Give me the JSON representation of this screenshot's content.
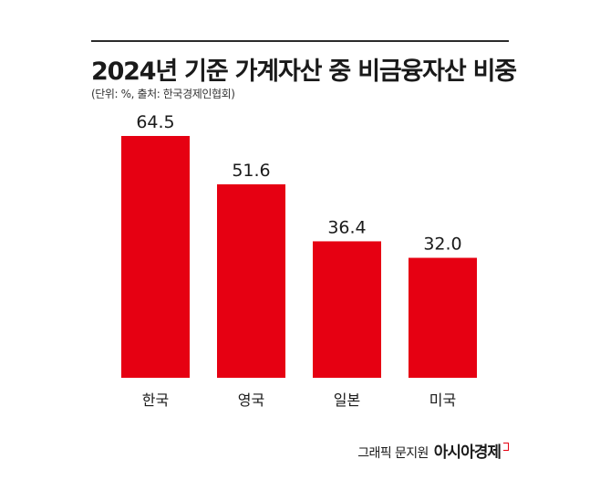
{
  "header": {
    "title": "2024년 기준 가계자산 중 비금융자산 비중",
    "subtitle": "(단위: %, 출처: 한국경제인협회)"
  },
  "chart_data": {
    "type": "bar",
    "categories": [
      "한국",
      "영국",
      "일본",
      "미국"
    ],
    "values": [
      64.5,
      51.6,
      36.4,
      32.0
    ],
    "value_labels": [
      "64.5",
      "51.6",
      "36.4",
      "32.0"
    ],
    "bar_color": "#e60012",
    "title": "2024년 기준 가계자산 중 비금융자산 비중",
    "xlabel": "",
    "ylabel": "",
    "ylim": [
      0,
      64.5
    ],
    "grid": false,
    "legend": "none"
  },
  "footer": {
    "credit_label": "그래픽 문지원",
    "credit_brand": "아시아경제"
  },
  "colors": {
    "accent": "#e60012",
    "text": "#1a1a1a"
  }
}
